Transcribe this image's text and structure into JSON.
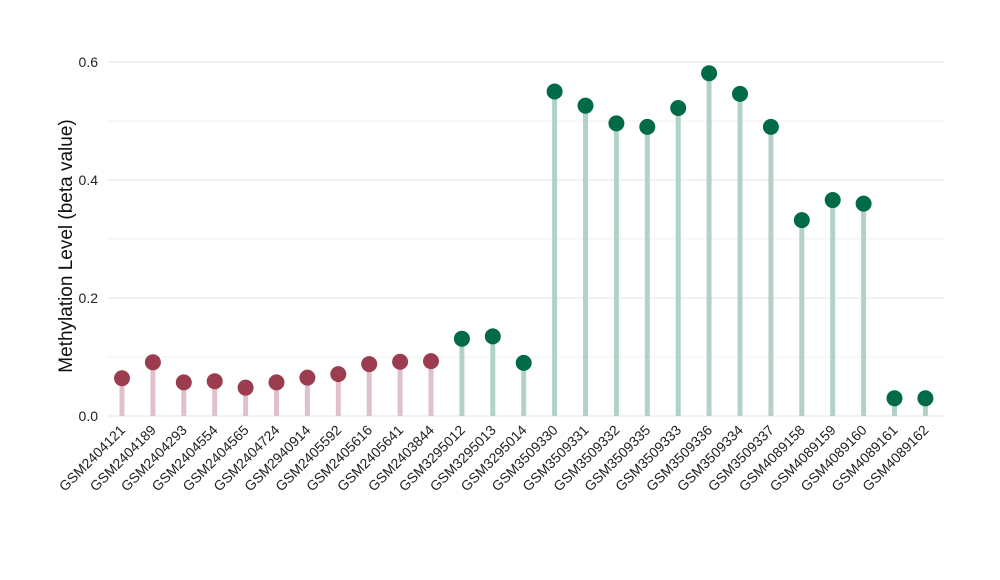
{
  "chart_data": {
    "type": "lollipop",
    "title": "",
    "xlabel": "",
    "ylabel": "Methylation Level (beta value)",
    "ylim": [
      0,
      0.6
    ],
    "yticks": [
      "0.0",
      "0.2",
      "0.4",
      "0.6"
    ],
    "grid": true,
    "legend": "none",
    "colors": {
      "group1_point": "#9b3d4e",
      "group1_stem": "#dfc2c8",
      "group2_point": "#006b45",
      "group2_stem": "#b3d2c6"
    },
    "points": [
      {
        "label": "GSM2404121",
        "value": 0.064,
        "group": 1
      },
      {
        "label": "GSM2404189",
        "value": 0.091,
        "group": 1
      },
      {
        "label": "GSM2404293",
        "value": 0.057,
        "group": 1
      },
      {
        "label": "GSM2404554",
        "value": 0.059,
        "group": 1
      },
      {
        "label": "GSM2404565",
        "value": 0.048,
        "group": 1
      },
      {
        "label": "GSM2404724",
        "value": 0.057,
        "group": 1
      },
      {
        "label": "GSM2940914",
        "value": 0.065,
        "group": 1
      },
      {
        "label": "GSM2405592",
        "value": 0.071,
        "group": 1
      },
      {
        "label": "GSM2405616",
        "value": 0.088,
        "group": 1
      },
      {
        "label": "GSM2405641",
        "value": 0.092,
        "group": 1
      },
      {
        "label": "GSM2403844",
        "value": 0.093,
        "group": 1
      },
      {
        "label": "GSM3295012",
        "value": 0.131,
        "group": 2
      },
      {
        "label": "GSM3295013",
        "value": 0.135,
        "group": 2
      },
      {
        "label": "GSM3295014",
        "value": 0.09,
        "group": 2
      },
      {
        "label": "GSM3509330",
        "value": 0.55,
        "group": 2
      },
      {
        "label": "GSM3509331",
        "value": 0.526,
        "group": 2
      },
      {
        "label": "GSM3509332",
        "value": 0.496,
        "group": 2
      },
      {
        "label": "GSM3509335",
        "value": 0.49,
        "group": 2
      },
      {
        "label": "GSM3509333",
        "value": 0.522,
        "group": 2
      },
      {
        "label": "GSM3509336",
        "value": 0.581,
        "group": 2
      },
      {
        "label": "GSM3509334",
        "value": 0.546,
        "group": 2
      },
      {
        "label": "GSM3509337",
        "value": 0.49,
        "group": 2
      },
      {
        "label": "GSM4089158",
        "value": 0.332,
        "group": 2
      },
      {
        "label": "GSM4089159",
        "value": 0.366,
        "group": 2
      },
      {
        "label": "GSM4089160",
        "value": 0.36,
        "group": 2
      },
      {
        "label": "GSM4089161",
        "value": 0.03,
        "group": 2
      },
      {
        "label": "GSM4089162",
        "value": 0.03,
        "group": 2
      }
    ]
  }
}
